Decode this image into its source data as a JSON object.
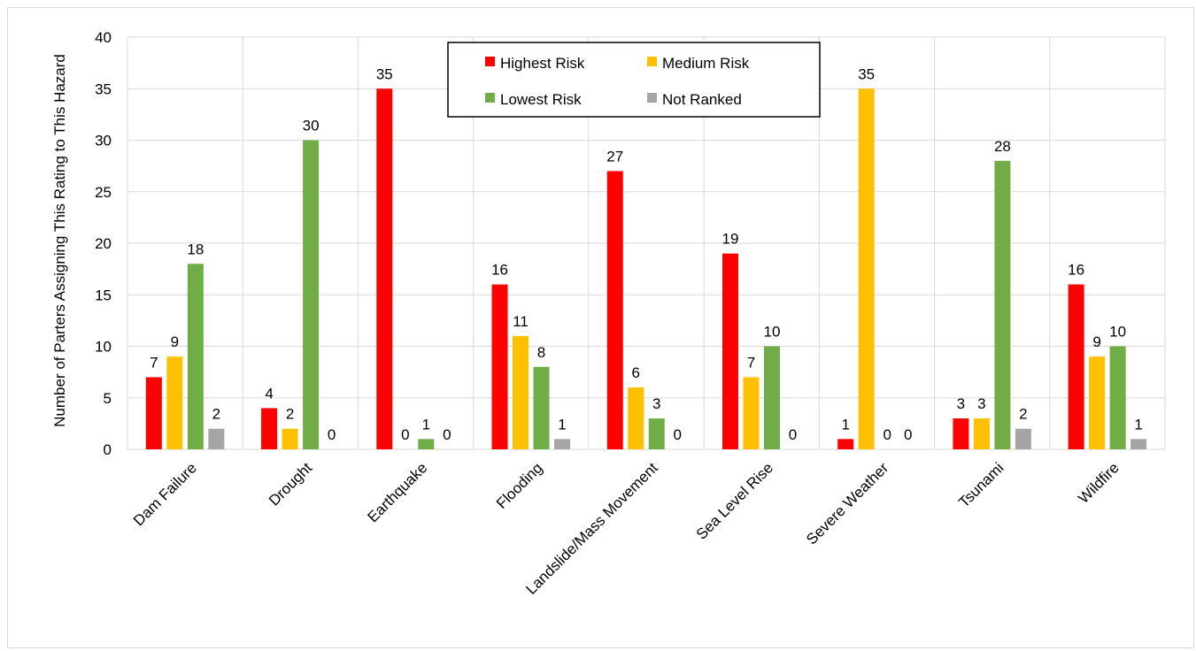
{
  "chart_data": {
    "type": "bar",
    "title": "",
    "xlabel": "",
    "ylabel": "Number of Parters Assigning This Rating to This Hazard",
    "ylim": [
      0,
      40
    ],
    "yticks": [
      0,
      5,
      10,
      15,
      20,
      25,
      30,
      35,
      40
    ],
    "grid": true,
    "legend_position": "top-center",
    "categories": [
      "Dam Failure",
      "Drought",
      "Earthquake",
      "Flooding",
      "Landslide/Mass Movement",
      "Sea Level Rise",
      "Severe Weather",
      "Tsunami",
      "Wildfire"
    ],
    "series": [
      {
        "name": "Highest Risk",
        "color": "#ff0000",
        "values": [
          7,
          4,
          35,
          16,
          27,
          19,
          1,
          3,
          16
        ]
      },
      {
        "name": "Medium Risk",
        "color": "#ffc000",
        "values": [
          9,
          2,
          0,
          11,
          6,
          7,
          35,
          3,
          9
        ]
      },
      {
        "name": "Lowest Risk",
        "color": "#70ad47",
        "values": [
          18,
          30,
          1,
          8,
          3,
          10,
          0,
          28,
          10
        ]
      },
      {
        "name": "Not Ranked",
        "color": "#a5a5a5",
        "values": [
          2,
          0,
          0,
          1,
          0,
          0,
          0,
          2,
          1
        ]
      }
    ]
  }
}
